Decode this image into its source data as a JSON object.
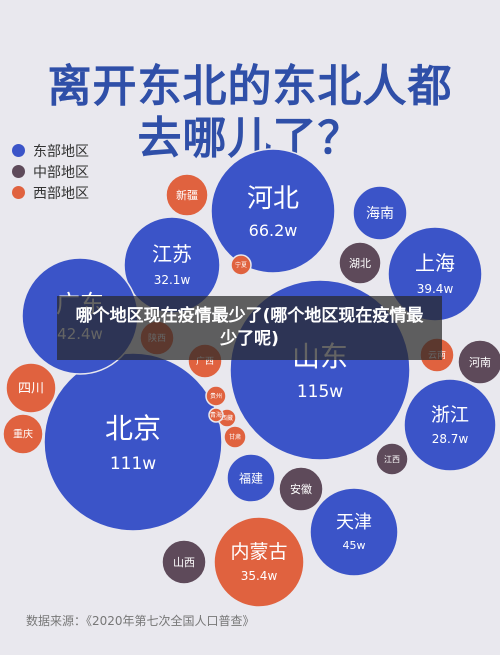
{
  "header": {
    "title_line1": "离开东北的东北人都",
    "title_line2": "去哪儿了？"
  },
  "legend": {
    "items": [
      {
        "label": "东部地区",
        "color": "#3b54c8"
      },
      {
        "label": "中部地区",
        "color": "#5e4a5a"
      },
      {
        "label": "西部地区",
        "color": "#e0623f"
      }
    ]
  },
  "overlay": {
    "text": "哪个地区现在疫情最少了(哪个地区现在疫情最少了呢)"
  },
  "footer": {
    "source": "数据来源：《2020年第七次全国人口普查》"
  },
  "chart_data": {
    "type": "bubble",
    "title": "离开东北的东北人都去哪儿了？",
    "unit": "w",
    "series": [
      {
        "name": "东部地区",
        "color": "#3b54c8"
      },
      {
        "name": "中部地区",
        "color": "#5e4a5a"
      },
      {
        "name": "西部地区",
        "color": "#e0623f"
      }
    ],
    "bubbles": [
      {
        "name": "河北",
        "region": "东部地区",
        "value": 66.2,
        "label": "66.2w"
      },
      {
        "name": "山东",
        "region": "东部地区",
        "value": 115,
        "label": "115w"
      },
      {
        "name": "北京",
        "region": "东部地区",
        "value": 111,
        "label": "111w"
      },
      {
        "name": "天津",
        "region": "东部地区",
        "value": 45,
        "label": "45w"
      },
      {
        "name": "江苏",
        "region": "东部地区",
        "value": 32.1,
        "label": "32.1w"
      },
      {
        "name": "广东",
        "region": "东部地区",
        "value": 42.4,
        "label": "42.4w"
      },
      {
        "name": "上海",
        "region": "东部地区",
        "value": 39.4,
        "label": "39.4w"
      },
      {
        "name": "浙江",
        "region": "东部地区",
        "value": 28.7,
        "label": "28.7w"
      },
      {
        "name": "内蒙古",
        "region": "西部地区",
        "value": 35.4,
        "label": "35.4w"
      },
      {
        "name": "海南",
        "region": "东部地区",
        "value": null,
        "label": ""
      },
      {
        "name": "福建",
        "region": "东部地区",
        "value": null,
        "label": ""
      },
      {
        "name": "新疆",
        "region": "西部地区",
        "value": null,
        "label": ""
      },
      {
        "name": "四川",
        "region": "西部地区",
        "value": null,
        "label": ""
      },
      {
        "name": "重庆",
        "region": "西部地区",
        "value": null,
        "label": ""
      },
      {
        "name": "陕西",
        "region": "西部地区",
        "value": null,
        "label": ""
      },
      {
        "name": "广西",
        "region": "西部地区",
        "value": null,
        "label": ""
      },
      {
        "name": "云南",
        "region": "西部地区",
        "value": null,
        "label": ""
      },
      {
        "name": "宁夏",
        "region": "西部地区",
        "value": null,
        "label": ""
      },
      {
        "name": "甘肃",
        "region": "西部地区",
        "value": null,
        "label": ""
      },
      {
        "name": "贵州",
        "region": "西部地区",
        "value": null,
        "label": ""
      },
      {
        "name": "西藏",
        "region": "西部地区",
        "value": null,
        "label": ""
      },
      {
        "name": "青海",
        "region": "西部地区",
        "value": null,
        "label": ""
      },
      {
        "name": "湖北",
        "region": "中部地区",
        "value": null,
        "label": ""
      },
      {
        "name": "河南",
        "region": "中部地区",
        "value": null,
        "label": ""
      },
      {
        "name": "江西",
        "region": "中部地区",
        "value": null,
        "label": ""
      },
      {
        "name": "安徽",
        "region": "中部地区",
        "value": null,
        "label": ""
      },
      {
        "name": "山西",
        "region": "中部地区",
        "value": null,
        "label": ""
      }
    ]
  }
}
